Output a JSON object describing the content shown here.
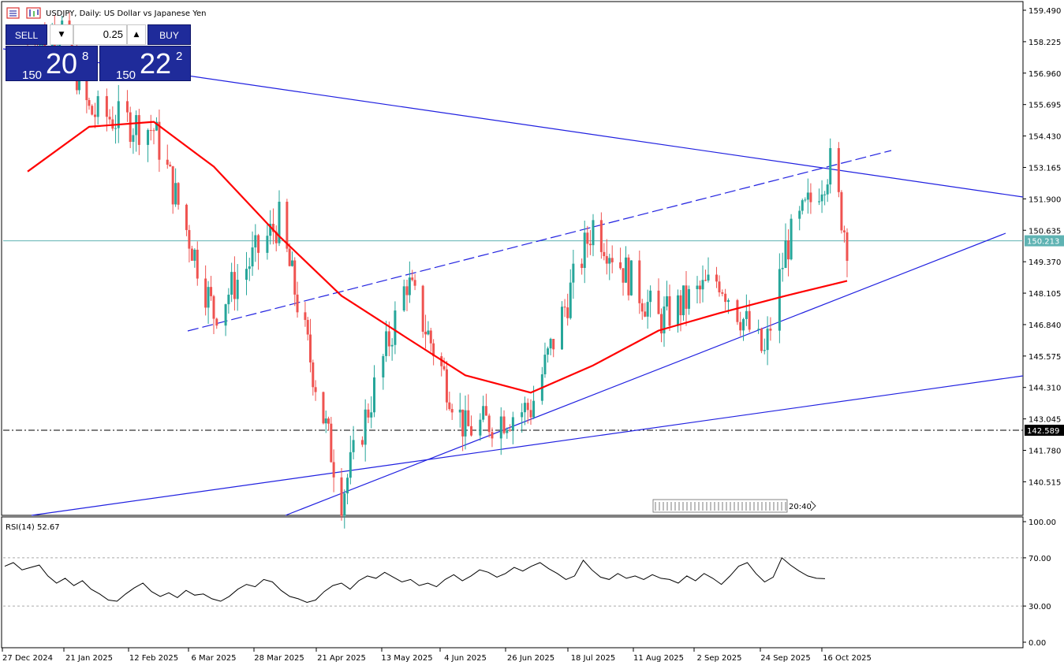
{
  "header": {
    "title": "USDJPY, Daily:  US Dollar vs Japanese Yen",
    "icons": [
      "chart-menu-icon",
      "chart-type-icon"
    ]
  },
  "trade_panel": {
    "sell_label": "SELL",
    "buy_label": "BUY",
    "lot_value": "0.25",
    "sell_quote": {
      "big": "150",
      "main": "20",
      "sup": "8"
    },
    "buy_quote": {
      "big": "150",
      "main": "22",
      "sup": "2"
    }
  },
  "colors": {
    "bull": "#26a69a",
    "bear": "#ef5350",
    "ma": "#ff0000",
    "trend": "#2020e0",
    "price_line": "#5fb3b3",
    "support_line": "#000000"
  },
  "chart_data": [
    {
      "type": "candlestick",
      "title": "USDJPY, Daily:  US Dollar vs Japanese Yen",
      "ylim": [
        139.9,
        159.6
      ],
      "price_ticks": [
        "159.490",
        "158.225",
        "156.960",
        "155.695",
        "154.430",
        "153.165",
        "151.900",
        "150.635",
        "149.370",
        "148.105",
        "146.840",
        "145.575",
        "144.310",
        "143.045",
        "141.780",
        "140.515"
      ],
      "x_labels": [
        "27 Dec 2024",
        "21 Jan 2025",
        "12 Feb 2025",
        "6 Mar 2025",
        "28 Mar 2025",
        "21 Apr 2025",
        "13 May 2025",
        "4 Jun 2025",
        "26 Jun 2025",
        "18 Jul 2025",
        "11 Aug 2025",
        "2 Sep 2025",
        "24 Sep 2025",
        "16 Oct 2025"
      ],
      "current_price_label": "150.213",
      "current_price": 150.213,
      "support_level_label": "142.589",
      "support_level": 142.589,
      "countdown": "20:40",
      "key_points": [
        {
          "date": "27 Dec 2024",
          "price": 157.9
        },
        {
          "date": "10 Jan 2025",
          "price": 158.8
        },
        {
          "date": "21 Jan 2025",
          "price": 155.4
        },
        {
          "date": "12 Feb 2025",
          "price": 154.7
        },
        {
          "date": "6 Mar 2025",
          "price": 147.3
        },
        {
          "date": "28 Mar 2025",
          "price": 151.0
        },
        {
          "date": "21 Apr 2025",
          "price": 139.9
        },
        {
          "date": "13 May 2025",
          "price": 148.6
        },
        {
          "date": "4 Jun 2025",
          "price": 142.6
        },
        {
          "date": "26 Jun 2025",
          "price": 143.5
        },
        {
          "date": "18 Jul 2025",
          "price": 150.9
        },
        {
          "date": "11 Aug 2025",
          "price": 147.0
        },
        {
          "date": "2 Sep 2025",
          "price": 148.7
        },
        {
          "date": "17 Sep 2025",
          "price": 145.6
        },
        {
          "date": "24 Sep 2025",
          "price": 149.9
        },
        {
          "date": "10 Oct 2025",
          "price": 153.3
        },
        {
          "date": "16 Oct 2025",
          "price": 150.2
        }
      ],
      "moving_average": [
        {
          "date": "27 Dec 2024",
          "value": 153.0
        },
        {
          "date": "21 Jan 2025",
          "value": 154.8
        },
        {
          "date": "12 Feb 2025",
          "value": 155.0
        },
        {
          "date": "6 Mar 2025",
          "value": 153.2
        },
        {
          "date": "28 Mar 2025",
          "value": 150.4
        },
        {
          "date": "21 Apr 2025",
          "value": 148.0
        },
        {
          "date": "13 May 2025",
          "value": 146.3
        },
        {
          "date": "4 Jun 2025",
          "value": 144.8
        },
        {
          "date": "26 Jun 2025",
          "value": 144.1
        },
        {
          "date": "18 Jul 2025",
          "value": 145.2
        },
        {
          "date": "11 Aug 2025",
          "value": 146.6
        },
        {
          "date": "2 Sep 2025",
          "value": 147.3
        },
        {
          "date": "24 Sep 2025",
          "value": 148.0
        },
        {
          "date": "16 Oct 2025",
          "value": 148.6
        }
      ]
    },
    {
      "type": "line",
      "title": "RSI(14) 52.67",
      "ylim": [
        0,
        100
      ],
      "y_ticks": [
        "100.00",
        "70.00",
        "30.00",
        "0.00"
      ],
      "levels": [
        70,
        30
      ],
      "values": [
        63,
        66,
        60,
        62,
        64,
        55,
        49,
        53,
        47,
        51,
        44,
        40,
        35,
        34,
        40,
        45,
        49,
        42,
        38,
        41,
        37,
        43,
        39,
        40,
        36,
        34,
        38,
        44,
        48,
        46,
        52,
        50,
        43,
        38,
        36,
        33,
        35,
        42,
        47,
        49,
        44,
        51,
        55,
        53,
        58,
        54,
        50,
        52,
        47,
        49,
        46,
        52,
        56,
        51,
        55,
        60,
        58,
        54,
        57,
        62,
        59,
        63,
        66,
        61,
        57,
        52,
        55,
        68,
        60,
        54,
        52,
        57,
        53,
        55,
        52,
        56,
        53,
        52,
        49,
        55,
        51,
        57,
        53,
        48,
        55,
        63,
        66,
        57,
        50,
        54,
        70,
        64,
        59,
        55,
        53,
        52.67
      ]
    }
  ]
}
